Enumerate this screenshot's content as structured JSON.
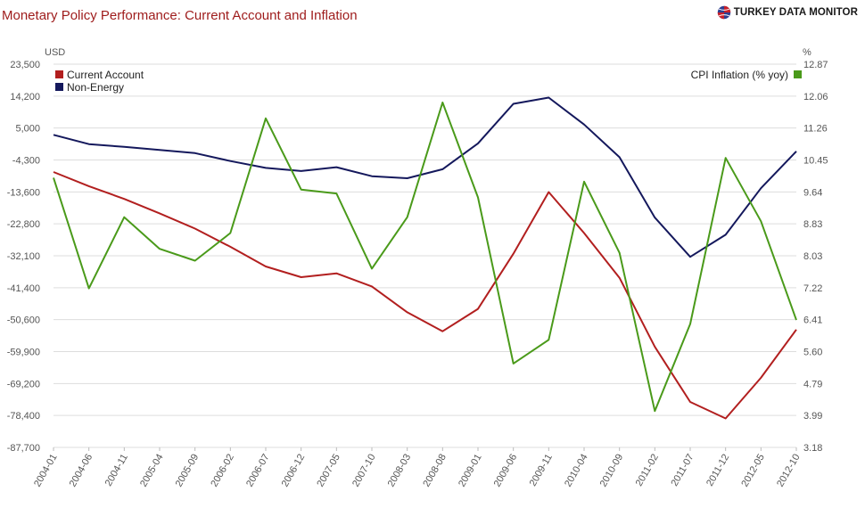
{
  "header": {
    "title": "Monetary Policy Performance: Current Account and Inflation",
    "brand": "TURKEY DATA MONITOR"
  },
  "colors": {
    "title": "#9e1b1b",
    "current_account": "#b21f1f",
    "non_energy": "#14185c",
    "cpi": "#4a9a1a",
    "grid": "#dddddd"
  },
  "chart_data": {
    "type": "line",
    "title": "Monetary Policy Performance: Current Account and Inflation",
    "y_left": {
      "unit_label": "USD",
      "ticks": [
        "23,500",
        "14,200",
        "5,000",
        "-4,300",
        "-13,600",
        "-22,800",
        "-32,100",
        "-41,400",
        "-50,600",
        "-59,900",
        "-69,200",
        "-78,400",
        "-87,700"
      ],
      "range": [
        -87700,
        23500
      ]
    },
    "y_right": {
      "unit_label": "%",
      "ticks": [
        "12.87",
        "12.06",
        "11.26",
        "10.45",
        "9.64",
        "8.83",
        "8.03",
        "7.22",
        "6.41",
        "5.60",
        "4.79",
        "3.99",
        "3.18"
      ],
      "range": [
        3.18,
        12.87
      ]
    },
    "x_ticks": [
      "2004-01",
      "2004-06",
      "2004-11",
      "2005-04",
      "2005-09",
      "2006-02",
      "2006-07",
      "2006-12",
      "2007-05",
      "2007-10",
      "2008-03",
      "2008-08",
      "2009-01",
      "2009-06",
      "2009-11",
      "2010-04",
      "2010-09",
      "2011-02",
      "2011-07",
      "2011-12",
      "2012-05",
      "2012-10"
    ],
    "grid": "horizontal",
    "legend_left": "top-left",
    "legend_right": "top-right",
    "series": [
      {
        "name": "Current Account",
        "axis": "left",
        "color": "#b21f1f",
        "points": [
          [
            "2004-01",
            -7800
          ],
          [
            "2004-06",
            -11900
          ],
          [
            "2004-11",
            -15600
          ],
          [
            "2005-04",
            -19800
          ],
          [
            "2005-09",
            -24200
          ],
          [
            "2006-02",
            -29500
          ],
          [
            "2006-07",
            -35200
          ],
          [
            "2006-12",
            -38300
          ],
          [
            "2007-05",
            -37200
          ],
          [
            "2007-10",
            -41000
          ],
          [
            "2008-03",
            -48500
          ],
          [
            "2008-08",
            -54000
          ],
          [
            "2009-01",
            -47500
          ],
          [
            "2009-06",
            -31500
          ],
          [
            "2009-11",
            -13600
          ],
          [
            "2010-04",
            -25500
          ],
          [
            "2010-09",
            -38500
          ],
          [
            "2011-02",
            -58500
          ],
          [
            "2011-07",
            -74500
          ],
          [
            "2011-12",
            -79300
          ],
          [
            "2012-05",
            -67500
          ],
          [
            "2012-10",
            -53500
          ]
        ]
      },
      {
        "name": "Non-Energy",
        "axis": "left",
        "color": "#14185c",
        "points": [
          [
            "2004-01",
            3000
          ],
          [
            "2004-06",
            300
          ],
          [
            "2004-11",
            -500
          ],
          [
            "2005-04",
            -1400
          ],
          [
            "2005-09",
            -2300
          ],
          [
            "2006-02",
            -4600
          ],
          [
            "2006-07",
            -6600
          ],
          [
            "2006-12",
            -7500
          ],
          [
            "2007-05",
            -6400
          ],
          [
            "2007-10",
            -9000
          ],
          [
            "2008-03",
            -9600
          ],
          [
            "2008-08",
            -7000
          ],
          [
            "2009-01",
            500
          ],
          [
            "2009-06",
            12000
          ],
          [
            "2009-11",
            13800
          ],
          [
            "2010-04",
            6000
          ],
          [
            "2010-09",
            -3500
          ],
          [
            "2011-02",
            -21000
          ],
          [
            "2011-07",
            -32400
          ],
          [
            "2011-12",
            -26000
          ],
          [
            "2012-05",
            -12500
          ],
          [
            "2012-10",
            -1800
          ]
        ]
      },
      {
        "name": "CPI Inflation (% yoy)",
        "axis": "right",
        "color": "#4a9a1a",
        "points": [
          [
            "2004-01",
            10.0
          ],
          [
            "2004-06",
            7.2
          ],
          [
            "2004-11",
            9.0
          ],
          [
            "2005-04",
            8.2
          ],
          [
            "2005-09",
            7.9
          ],
          [
            "2006-02",
            8.6
          ],
          [
            "2006-07",
            11.5
          ],
          [
            "2006-12",
            9.7
          ],
          [
            "2007-05",
            9.6
          ],
          [
            "2007-10",
            7.7
          ],
          [
            "2008-03",
            9.0
          ],
          [
            "2008-08",
            11.9
          ],
          [
            "2009-01",
            9.5
          ],
          [
            "2009-06",
            5.3
          ],
          [
            "2009-11",
            5.9
          ],
          [
            "2010-04",
            9.9
          ],
          [
            "2010-09",
            8.1
          ],
          [
            "2011-02",
            4.1
          ],
          [
            "2011-07",
            6.3
          ],
          [
            "2011-12",
            10.5
          ],
          [
            "2012-05",
            8.9
          ],
          [
            "2012-10",
            6.4
          ]
        ]
      }
    ]
  }
}
